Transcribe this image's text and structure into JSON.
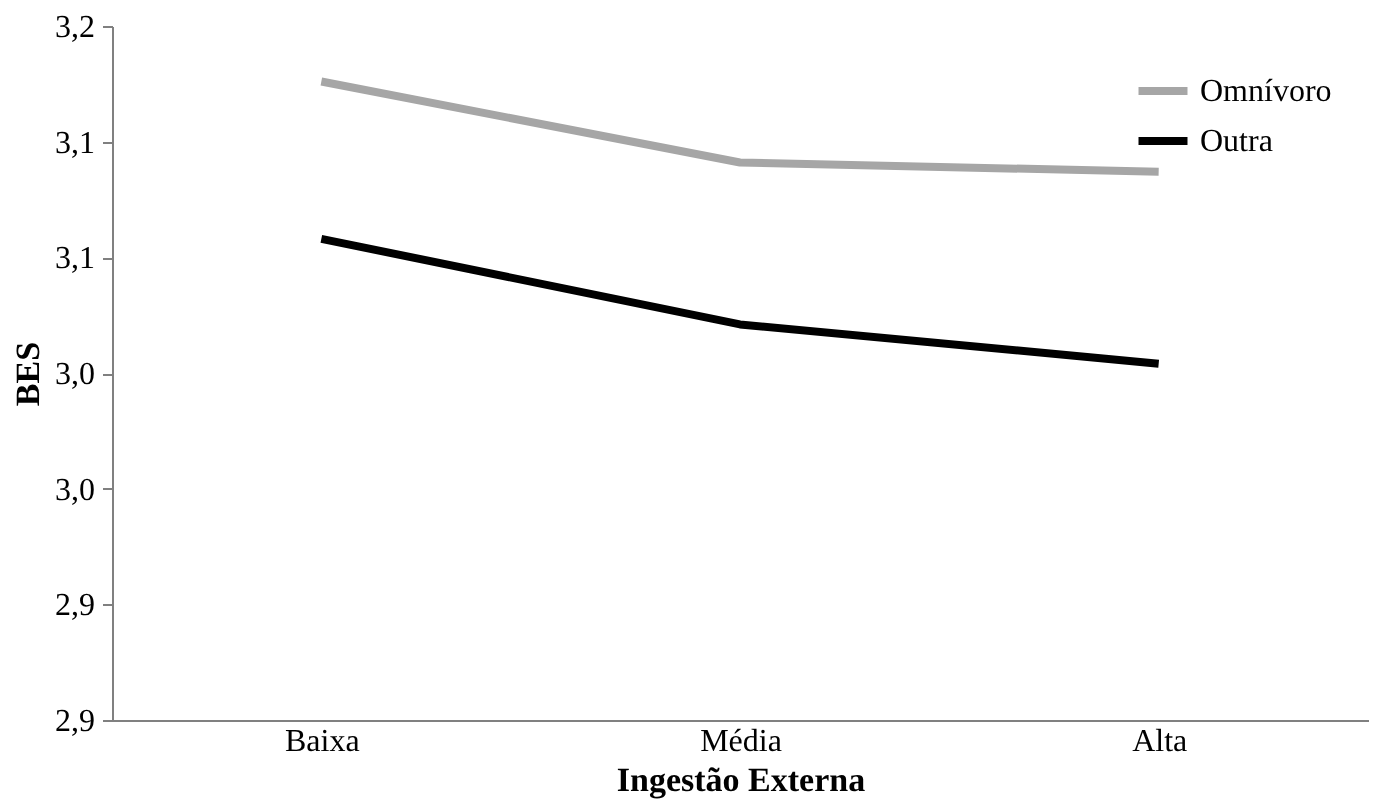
{
  "chart_data": {
    "type": "line",
    "xlabel": "Ingestão Externa",
    "ylabel": "BES",
    "categories": [
      "Baixa",
      "Média",
      "Alta"
    ],
    "series": [
      {
        "name": "Omnívoro",
        "color": "#a6a6a6",
        "values": [
          3.176,
          3.141,
          3.137
        ]
      },
      {
        "name": "Outra",
        "color": "#000000",
        "values": [
          3.108,
          3.071,
          3.054
        ]
      }
    ],
    "ylim": [
      2.9,
      3.2
    ],
    "yticks": [
      {
        "value": 2.9,
        "label": "2,9"
      },
      {
        "value": 2.95,
        "label": "2,9"
      },
      {
        "value": 3.0,
        "label": "3,0"
      },
      {
        "value": 3.05,
        "label": "3,0"
      },
      {
        "value": 3.1,
        "label": "3,1"
      },
      {
        "value": 3.15,
        "label": "3,1"
      },
      {
        "value": 3.2,
        "label": "3,2"
      }
    ],
    "grid": false,
    "legend": "top right",
    "marker": "none",
    "line_style": "solid"
  }
}
